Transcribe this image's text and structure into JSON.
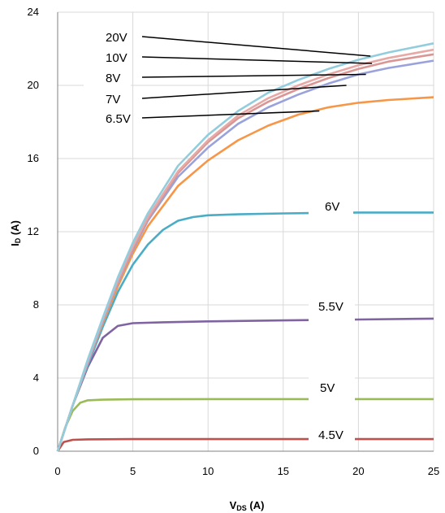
{
  "chart_data": {
    "type": "line",
    "title": "",
    "xlabel": {
      "main": "V",
      "sub": "DS",
      "unit": " (A)"
    },
    "ylabel": {
      "main": "I",
      "sub": "D",
      "unit": " (A)"
    },
    "xlim": [
      0,
      25
    ],
    "ylim": [
      0,
      24
    ],
    "x_ticks": [
      0,
      5,
      10,
      15,
      20,
      25
    ],
    "y_ticks": [
      0,
      4,
      8,
      12,
      16,
      20,
      24
    ],
    "grid": true,
    "series": [
      {
        "name": "4.5V",
        "color": "#c0504d",
        "points": [
          [
            0,
            0
          ],
          [
            0.4,
            0.5
          ],
          [
            1,
            0.62
          ],
          [
            2,
            0.65
          ],
          [
            5,
            0.66
          ],
          [
            10,
            0.66
          ],
          [
            15,
            0.66
          ],
          [
            20,
            0.66
          ],
          [
            25,
            0.66
          ]
        ]
      },
      {
        "name": "5V",
        "color": "#9bbb59",
        "points": [
          [
            0,
            0
          ],
          [
            0.5,
            1.3
          ],
          [
            1,
            2.2
          ],
          [
            1.5,
            2.65
          ],
          [
            2,
            2.78
          ],
          [
            3,
            2.82
          ],
          [
            5,
            2.84
          ],
          [
            10,
            2.85
          ],
          [
            15,
            2.85
          ],
          [
            20,
            2.85
          ],
          [
            25,
            2.85
          ]
        ]
      },
      {
        "name": "5.5V",
        "color": "#8064a2",
        "points": [
          [
            0,
            0
          ],
          [
            1,
            2.5
          ],
          [
            2,
            4.6
          ],
          [
            3,
            6.2
          ],
          [
            4,
            6.85
          ],
          [
            5,
            7.0
          ],
          [
            7,
            7.05
          ],
          [
            10,
            7.1
          ],
          [
            15,
            7.15
          ],
          [
            20,
            7.2
          ],
          [
            25,
            7.25
          ]
        ]
      },
      {
        "name": "6V",
        "color": "#4bacc6",
        "points": [
          [
            0,
            0
          ],
          [
            1,
            2.5
          ],
          [
            2,
            4.7
          ],
          [
            3,
            6.8
          ],
          [
            4,
            8.7
          ],
          [
            5,
            10.2
          ],
          [
            6,
            11.3
          ],
          [
            7,
            12.1
          ],
          [
            8,
            12.6
          ],
          [
            9,
            12.8
          ],
          [
            10,
            12.9
          ],
          [
            12,
            12.95
          ],
          [
            15,
            13.0
          ],
          [
            20,
            13.05
          ],
          [
            25,
            13.05
          ]
        ]
      },
      {
        "name": "6.5V",
        "color": "#f79646",
        "points": [
          [
            0,
            0
          ],
          [
            1,
            2.5
          ],
          [
            2,
            4.8
          ],
          [
            3,
            7.0
          ],
          [
            4,
            9.0
          ],
          [
            5,
            10.8
          ],
          [
            6,
            12.3
          ],
          [
            8,
            14.5
          ],
          [
            10,
            15.9
          ],
          [
            12,
            17.0
          ],
          [
            14,
            17.8
          ],
          [
            16,
            18.4
          ],
          [
            18,
            18.8
          ],
          [
            20,
            19.05
          ],
          [
            22,
            19.2
          ],
          [
            25,
            19.35
          ]
        ]
      },
      {
        "name": "7V",
        "color": "#9aa2db",
        "points": [
          [
            0,
            0
          ],
          [
            1,
            2.5
          ],
          [
            2,
            4.8
          ],
          [
            3,
            7.1
          ],
          [
            4,
            9.2
          ],
          [
            5,
            11.0
          ],
          [
            6,
            12.6
          ],
          [
            8,
            15.0
          ],
          [
            10,
            16.6
          ],
          [
            12,
            17.9
          ],
          [
            14,
            18.8
          ],
          [
            16,
            19.5
          ],
          [
            18,
            20.1
          ],
          [
            20,
            20.6
          ],
          [
            22,
            20.95
          ],
          [
            25,
            21.35
          ]
        ]
      },
      {
        "name": "8V",
        "color": "#d99694",
        "points": [
          [
            0,
            0
          ],
          [
            1,
            2.5
          ],
          [
            2,
            4.9
          ],
          [
            3,
            7.2
          ],
          [
            4,
            9.3
          ],
          [
            5,
            11.1
          ],
          [
            6,
            12.7
          ],
          [
            8,
            15.2
          ],
          [
            10,
            16.9
          ],
          [
            12,
            18.2
          ],
          [
            14,
            19.1
          ],
          [
            16,
            19.8
          ],
          [
            18,
            20.4
          ],
          [
            20,
            20.9
          ],
          [
            22,
            21.3
          ],
          [
            25,
            21.7
          ]
        ]
      },
      {
        "name": "10V",
        "color": "#e6a9a6",
        "points": [
          [
            0,
            0
          ],
          [
            1,
            2.5
          ],
          [
            2,
            4.9
          ],
          [
            3,
            7.2
          ],
          [
            4,
            9.35
          ],
          [
            5,
            11.2
          ],
          [
            6,
            12.8
          ],
          [
            8,
            15.3
          ],
          [
            10,
            17.0
          ],
          [
            12,
            18.35
          ],
          [
            14,
            19.3
          ],
          [
            16,
            20.0
          ],
          [
            18,
            20.6
          ],
          [
            20,
            21.1
          ],
          [
            22,
            21.5
          ],
          [
            25,
            21.95
          ]
        ]
      },
      {
        "name": "20V",
        "color": "#93cddd",
        "points": [
          [
            0,
            0
          ],
          [
            1,
            2.5
          ],
          [
            2,
            5.0
          ],
          [
            3,
            7.3
          ],
          [
            4,
            9.5
          ],
          [
            5,
            11.4
          ],
          [
            6,
            13.0
          ],
          [
            8,
            15.6
          ],
          [
            10,
            17.3
          ],
          [
            12,
            18.6
          ],
          [
            14,
            19.6
          ],
          [
            16,
            20.3
          ],
          [
            18,
            20.9
          ],
          [
            20,
            21.4
          ],
          [
            22,
            21.8
          ],
          [
            25,
            22.3
          ]
        ]
      }
    ],
    "curve_labels": [
      {
        "text": "20V",
        "leader": true,
        "to": [
          20.8,
          21.6
        ]
      },
      {
        "text": "10V",
        "leader": true,
        "to": [
          20.9,
          21.2
        ]
      },
      {
        "text": "8V",
        "leader": true,
        "to": [
          20.5,
          20.6
        ]
      },
      {
        "text": "7V",
        "leader": true,
        "to": [
          19.2,
          20.0
        ]
      },
      {
        "text": "6.5V",
        "leader": true,
        "to": [
          17.4,
          18.6
        ]
      },
      {
        "text": "6V",
        "leader": false
      },
      {
        "text": "5.5V",
        "leader": false
      },
      {
        "text": "5V",
        "leader": false
      },
      {
        "text": "4.5V",
        "leader": false
      }
    ]
  }
}
